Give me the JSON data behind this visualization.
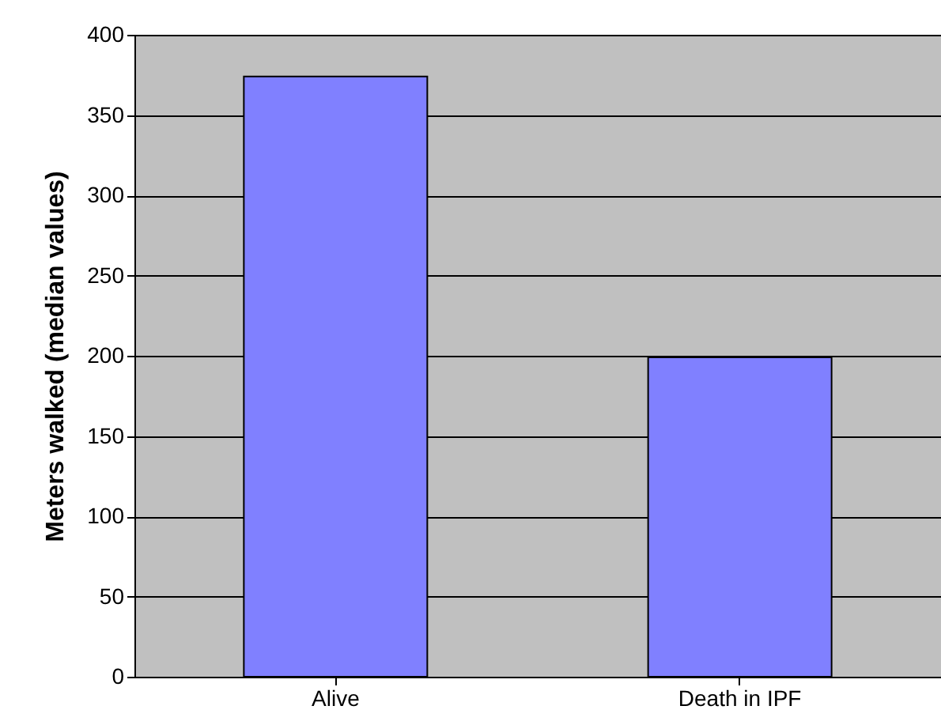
{
  "chart_data": {
    "type": "bar",
    "ylabel": "Meters walked (median values)",
    "categories": [
      "Alive",
      "Death in IPF"
    ],
    "values": [
      374,
      199
    ],
    "color": "#8080ff",
    "ylim": [
      0,
      400
    ],
    "yticks": [
      0,
      50,
      100,
      150,
      200,
      250,
      300,
      350,
      400
    ],
    "grid": "y"
  }
}
